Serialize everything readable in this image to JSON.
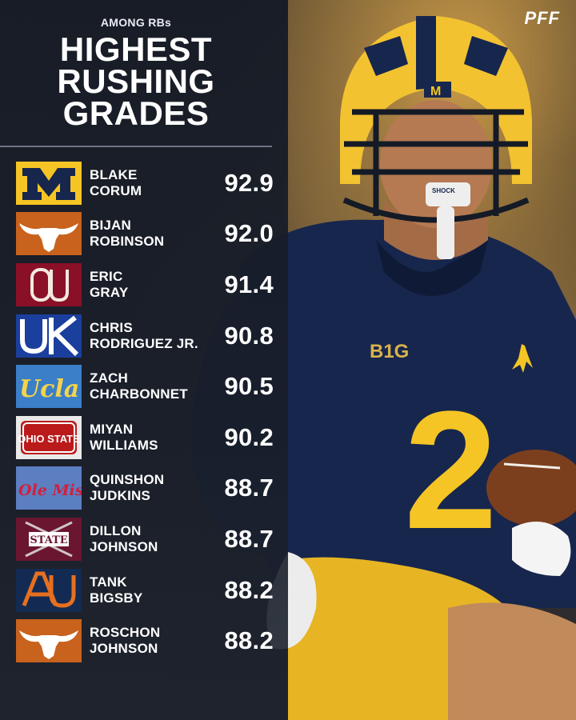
{
  "brand": "PFF",
  "header": {
    "kicker": "AMONG RBs",
    "title_lines": [
      "HIGHEST",
      "RUSHING",
      "GRADES"
    ]
  },
  "players": [
    {
      "first": "BLAKE",
      "last": "CORUM",
      "grade": "92.9",
      "team_logo": "michigan-logo",
      "logo_text": "M"
    },
    {
      "first": "BIJAN",
      "last": "ROBINSON",
      "grade": "92.0",
      "team_logo": "texas-longhorn-logo",
      "logo_text": ""
    },
    {
      "first": "ERIC",
      "last": "GRAY",
      "grade": "91.4",
      "team_logo": "oklahoma-logo",
      "logo_text": "OU"
    },
    {
      "first": "CHRIS",
      "last": "RODRIGUEZ JR.",
      "grade": "90.8",
      "team_logo": "kentucky-logo",
      "logo_text": "UK"
    },
    {
      "first": "ZACH",
      "last": "CHARBONNET",
      "grade": "90.5",
      "team_logo": "ucla-logo",
      "logo_text": "Ucla"
    },
    {
      "first": "MIYAN",
      "last": "WILLIAMS",
      "grade": "90.2",
      "team_logo": "ohio-state-logo",
      "logo_text": "OHIO STATE"
    },
    {
      "first": "QUINSHON",
      "last": "JUDKINS",
      "grade": "88.7",
      "team_logo": "ole-miss-logo",
      "logo_text": "Ole Miss"
    },
    {
      "first": "DILLON",
      "last": "JOHNSON",
      "grade": "88.7",
      "team_logo": "mississippi-state-logo",
      "logo_text": "STATE"
    },
    {
      "first": "TANK",
      "last": "BIGSBY",
      "grade": "88.2",
      "team_logo": "auburn-logo",
      "logo_text": "AU"
    },
    {
      "first": "ROSCHON",
      "last": "JOHNSON",
      "grade": "88.2",
      "team_logo": "texas-longhorn-logo",
      "logo_text": ""
    }
  ],
  "photo": {
    "jersey_number": "2",
    "helmet_letter": "M",
    "chest_patch": "B1G",
    "mouthguard_text": "SHOCK"
  },
  "colors": {
    "panel_bg": "#181e2a",
    "michigan_maize": "#f5c525",
    "michigan_blue": "#17264d"
  }
}
